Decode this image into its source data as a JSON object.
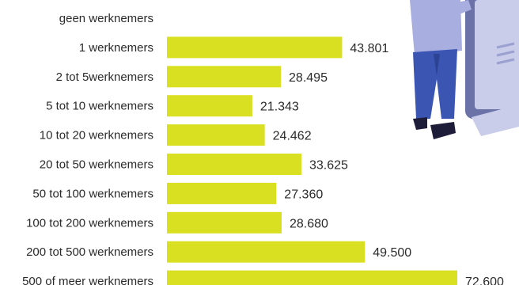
{
  "chart_data": {
    "type": "bar",
    "orientation": "horizontal",
    "categories": [
      "geen werknemers",
      "1 werknemers",
      "2 tot 5werknemers",
      "5 tot 10 werknemers",
      "10 tot 20 werknemers",
      "20 tot 50 werknemers",
      "50 tot 100 werknemers",
      "100 tot 200 werknemers",
      "200 tot 500 werknemers",
      "500 of meer werknemers"
    ],
    "values": [
      null,
      43801,
      28495,
      21343,
      24462,
      33625,
      27360,
      28680,
      49500,
      72600
    ],
    "value_labels": [
      "",
      "43.801",
      "28.495",
      "21.343",
      "24.462",
      "33.625",
      "27.360",
      "28.680",
      "49.500",
      "72.600"
    ],
    "title": "",
    "xlabel": "",
    "ylabel": "",
    "xlim": [
      0,
      75000
    ],
    "grid": false,
    "bar_color": "#d9e021"
  },
  "illustration": {
    "name": "person-with-tablet-illustration",
    "colors": {
      "shirt": "#a9aee0",
      "trousers": "#3b55b3",
      "shoes": "#1d1d3a",
      "screen": "#c9cdea",
      "device": "#6a72a8"
    }
  }
}
